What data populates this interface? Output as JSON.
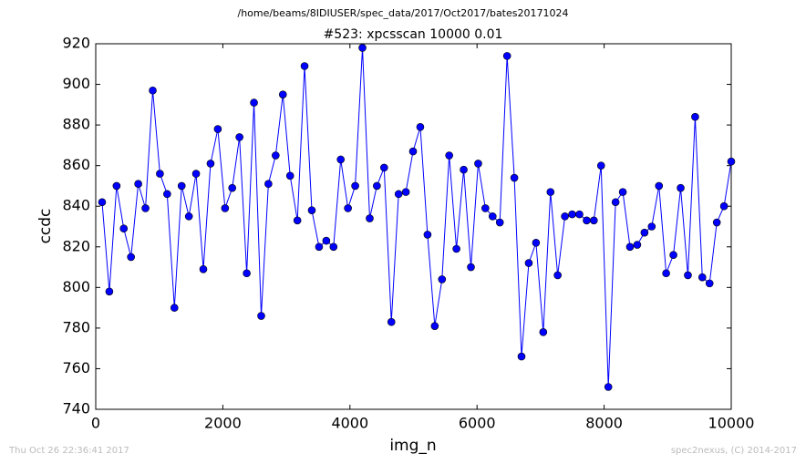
{
  "chart_data": {
    "type": "line",
    "suptitle": "/home/beams/8IDIUSER/spec_data/2017/Oct2017/bates20171024",
    "title": "#523: xpcsscan 10000 0.01",
    "x_label": "img_n",
    "y_label": "ccdc",
    "footer_left": "Thu Oct 26 22:36:41 2017",
    "footer_right": "spec2nexus, (C) 2014-2017",
    "xlim": [
      0,
      10000
    ],
    "xticks": [
      0,
      2000,
      4000,
      6000,
      8000,
      10000
    ],
    "ylim": [
      740,
      920
    ],
    "yticks": [
      740,
      760,
      780,
      800,
      820,
      840,
      860,
      880,
      900,
      920
    ],
    "grid": false,
    "series": [
      {
        "name": "ccdc",
        "color": "#0000ff",
        "x": [
          100,
          214,
          328,
          441,
          555,
          669,
          783,
          897,
          1010,
          1124,
          1238,
          1352,
          1466,
          1579,
          1693,
          1807,
          1921,
          2035,
          2148,
          2262,
          2376,
          2490,
          2604,
          2717,
          2831,
          2945,
          3059,
          3173,
          3286,
          3400,
          3514,
          3628,
          3742,
          3855,
          3969,
          4083,
          4197,
          4311,
          4424,
          4538,
          4652,
          4766,
          4880,
          4993,
          5107,
          5221,
          5335,
          5449,
          5562,
          5676,
          5790,
          5904,
          6018,
          6131,
          6245,
          6359,
          6473,
          6587,
          6700,
          6814,
          6928,
          7042,
          7156,
          7269,
          7383,
          7497,
          7611,
          7725,
          7838,
          7952,
          8066,
          8180,
          8294,
          8407,
          8521,
          8635,
          8749,
          8863,
          8976,
          9090,
          9204,
          9318,
          9432,
          9545,
          9659,
          9773,
          9887,
          10000
        ],
        "values": [
          842,
          798,
          850,
          829,
          815,
          851,
          839,
          897,
          856,
          846,
          790,
          850,
          835,
          856,
          809,
          861,
          878,
          839,
          849,
          874,
          807,
          891,
          786,
          851,
          865,
          895,
          855,
          833,
          909,
          838,
          820,
          823,
          820,
          863,
          839,
          850,
          918,
          834,
          850,
          859,
          783,
          846,
          847,
          867,
          879,
          826,
          781,
          804,
          865,
          819,
          858,
          810,
          861,
          839,
          835,
          832,
          914,
          854,
          766,
          812,
          822,
          778,
          847,
          806,
          835,
          836,
          836,
          833,
          833,
          860,
          751,
          842,
          847,
          820,
          821,
          827,
          830,
          850,
          807,
          816,
          849,
          806,
          884,
          805,
          802,
          832,
          840,
          862
        ]
      }
    ]
  }
}
